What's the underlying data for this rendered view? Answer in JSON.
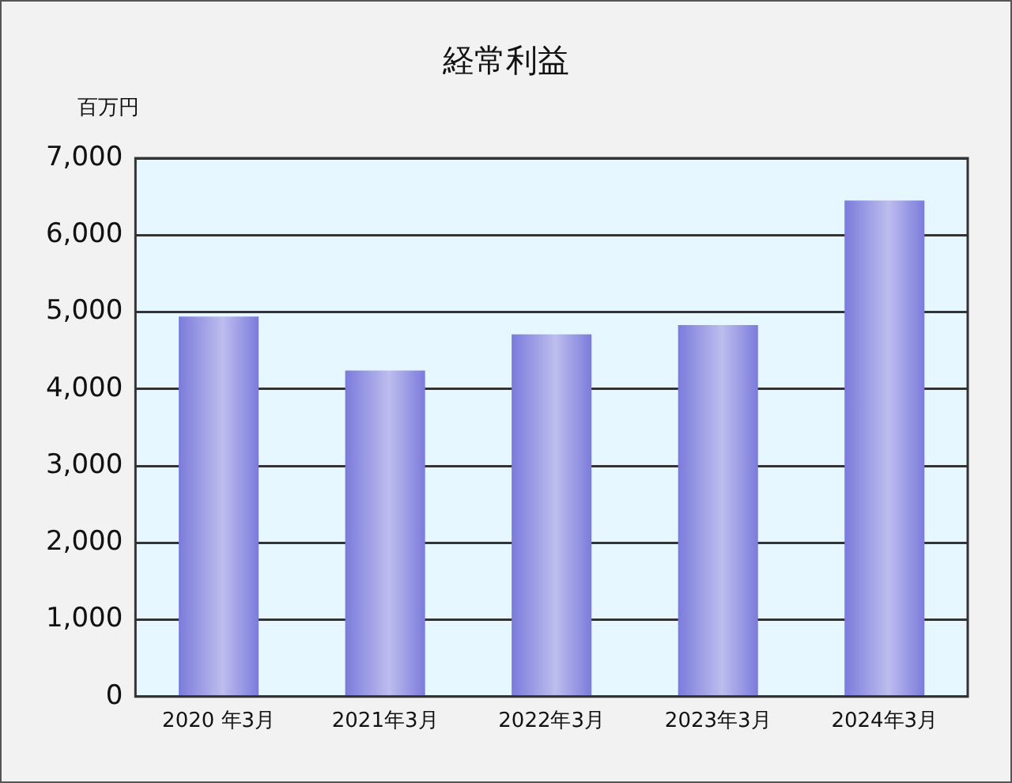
{
  "chart_data": {
    "type": "bar",
    "title": "経常利益",
    "ylabel": "百万円",
    "categories": [
      "2020 年3月",
      "2021年3月",
      "2022年3月",
      "2023年3月",
      "2024年3月"
    ],
    "values": [
      4940,
      4240,
      4710,
      4830,
      6450
    ],
    "color": "#7b7bdc",
    "ylim": [
      0,
      7000
    ],
    "yticks": [
      0,
      {
        "value": 1000,
        "label": "1,000"
      },
      {
        "value": 2000,
        "label": "2,000"
      },
      {
        "value": 3000,
        "label": "3,000"
      },
      {
        "value": 4000,
        "label": "4,000"
      },
      {
        "value": 5000,
        "label": "5,000"
      },
      {
        "value": 6000,
        "label": "6,000"
      },
      {
        "value": 7000,
        "label": "7,000"
      }
    ],
    "grid": "y",
    "legend": false
  }
}
